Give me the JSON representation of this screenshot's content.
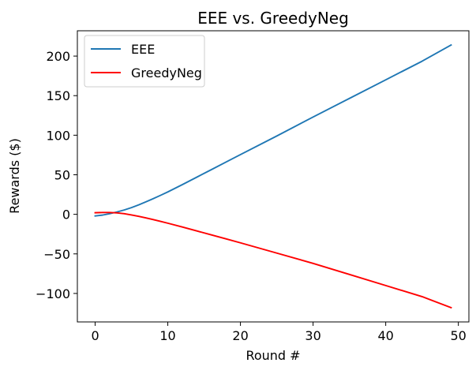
{
  "chart_data": {
    "type": "line",
    "title": "EEE vs. GreedyNeg",
    "xlabel": "Round #",
    "ylabel": "Rewards ($)",
    "xlim": [
      -2.45,
      51.45
    ],
    "ylim": [
      -136,
      232
    ],
    "xticks": [
      0,
      10,
      20,
      30,
      40,
      50
    ],
    "xtick_labels": [
      "0",
      "10",
      "20",
      "30",
      "40",
      "50"
    ],
    "yticks": [
      -100,
      -50,
      0,
      50,
      100,
      150,
      200
    ],
    "ytick_labels": [
      "−100",
      "−50",
      "0",
      "50",
      "100",
      "150",
      "200"
    ],
    "grid": false,
    "legend": {
      "placement": "top-left"
    },
    "series": [
      {
        "name": "EEE",
        "color": "#1f77b4",
        "x": [
          0,
          1,
          2,
          3,
          4,
          5,
          6,
          7,
          8,
          9,
          10,
          12,
          14,
          16,
          18,
          20,
          25,
          30,
          35,
          40,
          45,
          49
        ],
        "y": [
          -2,
          -1,
          0.8,
          3,
          5.5,
          8.5,
          12,
          15.8,
          19.8,
          24,
          28.3,
          37.5,
          47,
          56.5,
          66,
          75.5,
          99,
          123,
          146.5,
          170,
          193.5,
          214
        ]
      },
      {
        "name": "GreedyNeg",
        "color": "#ff0000",
        "x": [
          0,
          1,
          2,
          3,
          4,
          5,
          6,
          7,
          8,
          9,
          10,
          12,
          14,
          16,
          18,
          20,
          25,
          30,
          35,
          40,
          45,
          49
        ],
        "y": [
          2,
          2.3,
          2.3,
          1.8,
          0.8,
          -0.8,
          -2.6,
          -4.6,
          -6.7,
          -8.9,
          -11.2,
          -16,
          -21,
          -26,
          -31,
          -36,
          -49,
          -62,
          -76,
          -90,
          -104,
          -118
        ]
      }
    ]
  }
}
